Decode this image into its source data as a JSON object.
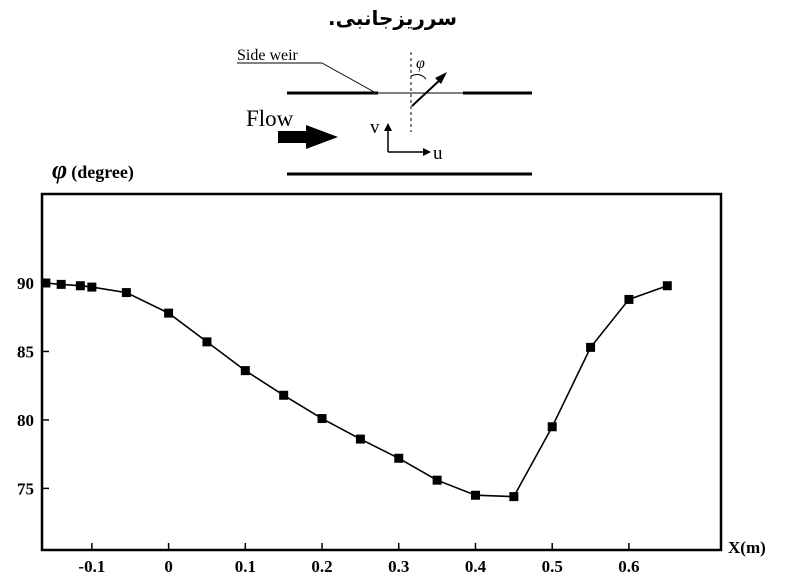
{
  "caption": "سرریزجانبی.",
  "schematic": {
    "side_weir_label": "Side weir",
    "flow_label": "Flow",
    "angle_symbol": "φ",
    "v_label": "v",
    "u_label": "u"
  },
  "chart_data": {
    "type": "line",
    "ylabel_symbol": "φ",
    "ylabel_unit": "(degree)",
    "xlabel": "X(m)",
    "xlim": [
      -0.165,
      0.72
    ],
    "ylim": [
      70.5,
      96.5
    ],
    "x_ticks": [
      -0.1,
      0,
      0.1,
      0.2,
      0.3,
      0.4,
      0.5,
      0.6
    ],
    "x_tick_labels": [
      "-0.1",
      "0",
      "0.1",
      "0.2",
      "0.3",
      "0.4",
      "0.5",
      "0.6"
    ],
    "y_ticks": [
      75,
      80,
      85,
      90
    ],
    "y_tick_labels": [
      "75",
      "80",
      "85",
      "90"
    ],
    "grid": false,
    "marker": "square",
    "series": [
      {
        "x": [
          -0.16,
          -0.14,
          -0.115,
          -0.1,
          -0.055,
          0,
          0.05,
          0.1,
          0.15,
          0.2,
          0.25,
          0.3,
          0.35,
          0.4,
          0.45,
          0.5,
          0.55,
          0.6,
          0.65
        ],
        "y": [
          90.0,
          89.9,
          89.8,
          89.7,
          89.3,
          87.8,
          85.7,
          83.6,
          81.8,
          80.1,
          78.6,
          77.2,
          75.6,
          74.5,
          74.4,
          79.5,
          85.3,
          88.8,
          89.8
        ]
      }
    ]
  }
}
